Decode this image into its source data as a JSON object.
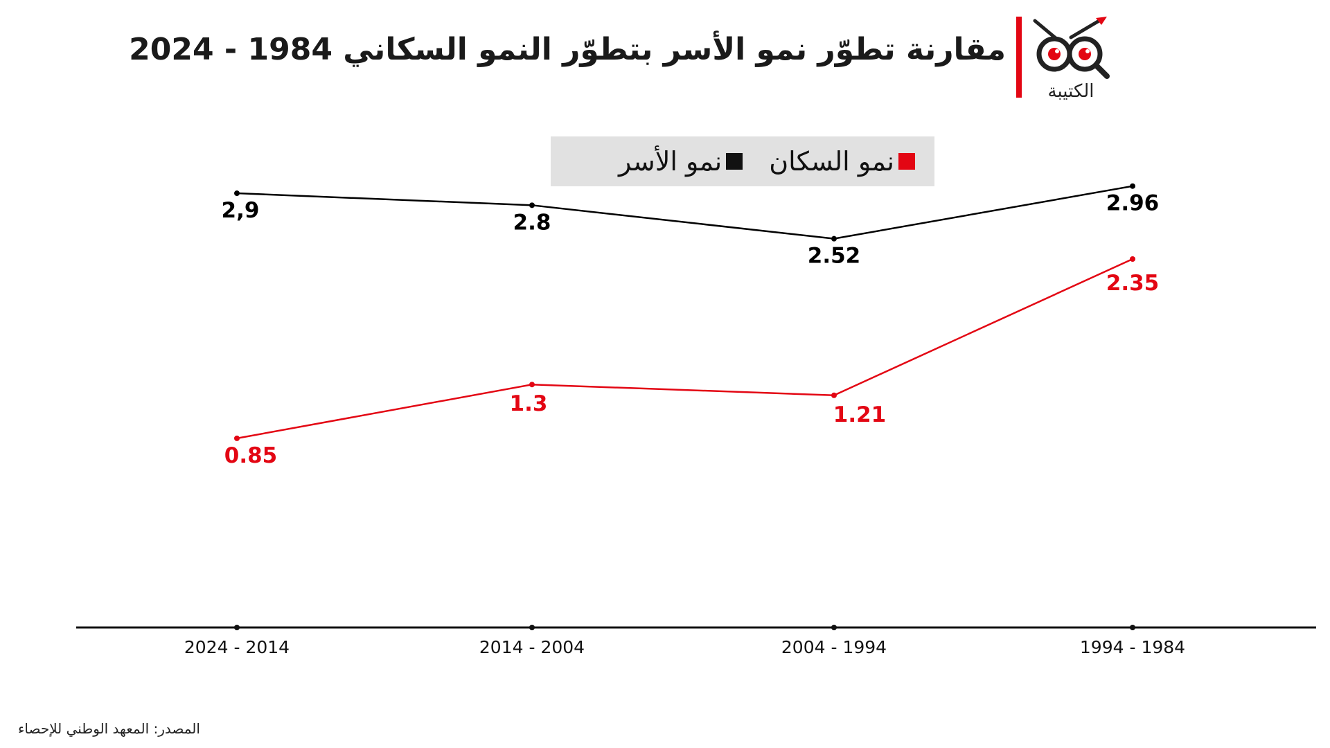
{
  "header": {
    "title": "مقارنة تطوّر نمو الأسر بتطوّر النمو السكاني 1984 - 2024",
    "logo_text": "الكتيبة"
  },
  "source": "المصدر: المعهد الوطني للإحصاء",
  "colors": {
    "accent": "#e30613",
    "households": "#000000",
    "population": "#e30613",
    "legend_bg": "#e1e1e1"
  },
  "chart_data": {
    "type": "line",
    "title": "مقارنة تطوّر نمو الأسر بتطوّر النمو السكاني 1984 - 2024",
    "categories": [
      "1994 - 1984",
      "2004 - 1994",
      "2014 - 2004",
      "2024 - 2014"
    ],
    "category_order": "right-to-left",
    "series": [
      {
        "name": "نمو الأسر",
        "color": "#000000",
        "values": [
          2.96,
          2.52,
          2.8,
          2.9
        ],
        "labels": [
          "2.96",
          "2.52",
          "2.8",
          "2,9"
        ]
      },
      {
        "name": "نمو السكان",
        "color": "#e30613",
        "values": [
          2.35,
          1.21,
          1.3,
          0.85
        ],
        "labels": [
          "2.35",
          "1.21",
          "1.3",
          "0.85"
        ]
      }
    ],
    "legend_position": "top",
    "grid": false,
    "xlabel": "",
    "ylabel": ""
  }
}
